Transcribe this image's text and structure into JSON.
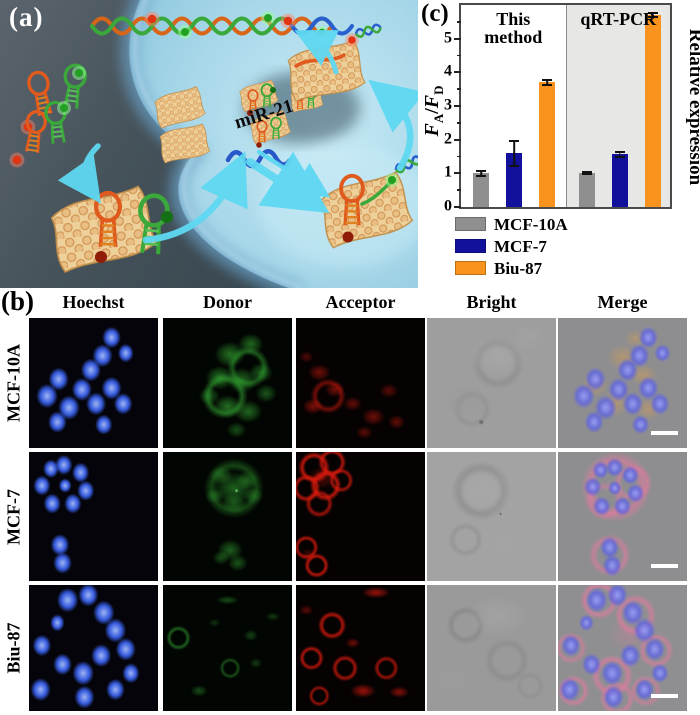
{
  "panel_a": {
    "label": "(a)",
    "mir_label": "miR-21"
  },
  "panel_c": {
    "label": "(c)",
    "group_labels": [
      "This method",
      "qRT-PCR"
    ],
    "ylabel_left": {
      "sym1": "F",
      "sub1": "A",
      "sep": "/",
      "sym2": "F",
      "sub2": "D"
    },
    "ylabel_right": "Relative expression",
    "legend": [
      {
        "label": "MCF-10A",
        "color": "#8f8f8f"
      },
      {
        "label": "MCF-7",
        "color": "#11119b"
      },
      {
        "label": "Biu-87",
        "color": "#f8941d"
      }
    ]
  },
  "chart_data": {
    "type": "bar",
    "groups": [
      "This method",
      "qRT-PCR"
    ],
    "categories": [
      "MCF-10A",
      "MCF-7",
      "Biu-87"
    ],
    "series": [
      {
        "name": "This method",
        "values": [
          1.0,
          1.6,
          3.7
        ],
        "errors": [
          0.1,
          0.4,
          0.1
        ]
      },
      {
        "name": "qRT-PCR",
        "values": [
          1.0,
          1.57,
          5.7
        ],
        "errors": [
          0.05,
          0.1,
          0.08
        ]
      }
    ],
    "title": "",
    "ylabel_left": "FA/FD",
    "ylabel_right": "Relative expression",
    "yticks": [
      0,
      1,
      2,
      3,
      4,
      5
    ],
    "ylim": [
      0,
      6
    ],
    "bar_colors": [
      "#8f8f8f",
      "#11119b",
      "#f8941d"
    ],
    "group_backgrounds": [
      "#ffffff",
      "#e7e7e6"
    ],
    "legend_position": "bottom-left",
    "grid": false
  },
  "panel_b": {
    "label": "(b)",
    "columns": [
      "Hoechst",
      "Donor",
      "Acceptor",
      "Bright",
      "Merge"
    ],
    "rows": [
      "MCF-10A",
      "MCF-7",
      "Biu-87"
    ]
  }
}
